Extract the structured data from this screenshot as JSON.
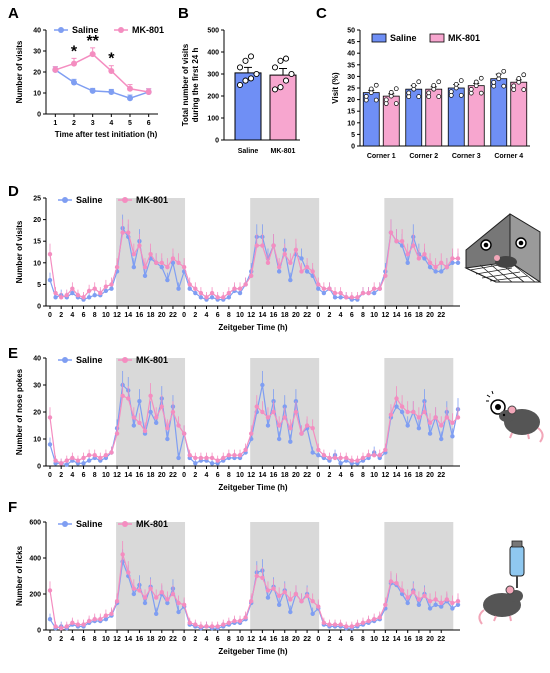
{
  "colors": {
    "saline": "#7f9ef2",
    "mk801": "#f48dc0",
    "shade": "#d9d9d9",
    "cornerBlue": "#6f8ff5",
    "cornerPink": "#f7a6cf"
  },
  "legend": {
    "saline": "Saline",
    "mk801": "MK-801"
  },
  "panels": {
    "A": "A",
    "B": "B",
    "C": "C",
    "D": "D",
    "E": "E",
    "F": "F"
  },
  "chart_data": [
    {
      "id": "A",
      "type": "line",
      "xlabel": "Time after test initiation (h)",
      "ylabel": "Number of visits",
      "x": [
        1,
        2,
        3,
        4,
        5,
        6
      ],
      "xlim": [
        0.5,
        6.5
      ],
      "ylim": [
        0,
        40
      ],
      "yticks": [
        0,
        10,
        20,
        30,
        40
      ],
      "series": [
        {
          "name": "Saline",
          "values": [
            21,
            15,
            11,
            10.5,
            7.5,
            10.5
          ],
          "err": [
            1.5,
            1.5,
            1.2,
            1.2,
            1.5,
            1.5
          ]
        },
        {
          "name": "MK-801",
          "values": [
            21,
            24,
            28.5,
            20.5,
            12,
            10.5
          ],
          "err": [
            1.5,
            2.5,
            3,
            2.5,
            2,
            1.5
          ]
        }
      ],
      "annotations": [
        {
          "x": 2,
          "text": "*"
        },
        {
          "x": 3,
          "text": "**"
        },
        {
          "x": 4,
          "text": "*"
        }
      ]
    },
    {
      "id": "B",
      "type": "bar",
      "ylabel": "Total number of visits during the first 24 h",
      "categories": [
        "Saline",
        "MK-801"
      ],
      "values": [
        305,
        295
      ],
      "err": [
        25,
        30
      ],
      "points": [
        [
          250,
          270,
          280,
          300,
          330,
          360,
          380
        ],
        [
          230,
          240,
          270,
          300,
          330,
          360,
          370
        ]
      ],
      "ylim": [
        0,
        500
      ],
      "yticks": [
        0,
        100,
        200,
        300,
        400,
        500
      ]
    },
    {
      "id": "C",
      "type": "bar",
      "ylabel": "Visit (%)",
      "categories": [
        "Corner 1",
        "Corner 2",
        "Corner 3",
        "Corner 4"
      ],
      "series": [
        {
          "name": "Saline",
          "values": [
            23,
            24.5,
            25,
            29
          ],
          "err": [
            1,
            1.5,
            1.5,
            2
          ]
        },
        {
          "name": "MK-801",
          "values": [
            21.5,
            24.5,
            26,
            27.5
          ],
          "err": [
            1,
            1,
            1,
            1
          ]
        }
      ],
      "ylim": [
        0,
        50
      ],
      "yticks": [
        0,
        5,
        10,
        15,
        20,
        25,
        30,
        35,
        40,
        45,
        50
      ]
    },
    {
      "id": "D",
      "type": "line",
      "xlabel": "Zeitgeber Time (h)",
      "ylabel": "Number of visits",
      "ylim": [
        0,
        25
      ],
      "yticks": [
        0,
        5,
        10,
        15,
        20,
        25
      ],
      "xticks": [
        "0",
        "2",
        "4",
        "6",
        "8",
        "10",
        "12",
        "14",
        "16",
        "18",
        "20",
        "22"
      ],
      "series": [
        {
          "name": "Saline",
          "values": [
            6,
            2,
            2.5,
            2,
            3,
            2,
            1.5,
            2,
            2.5,
            2.5,
            3.5,
            4,
            8,
            18,
            16,
            9,
            15,
            7,
            11,
            10,
            9,
            6,
            10,
            4,
            8,
            4,
            3,
            2,
            1.5,
            2,
            1.5,
            1.5,
            2,
            3.5,
            3,
            5,
            8,
            16,
            16,
            11,
            14,
            8,
            13,
            6,
            12,
            11,
            8,
            7,
            4,
            3,
            4,
            2,
            2,
            2,
            1.5,
            1.5,
            3,
            3,
            3,
            4,
            8,
            17,
            15,
            14,
            10,
            16,
            12,
            11,
            9,
            8,
            8,
            9,
            10,
            10
          ]
        },
        {
          "name": "MK-801",
          "values": [
            12,
            3,
            2,
            2.5,
            4,
            2.5,
            2,
            3.5,
            4,
            3,
            4.5,
            5,
            9,
            17,
            17,
            12,
            14,
            9,
            12,
            10,
            10,
            9,
            11,
            10,
            9,
            5,
            4,
            3,
            2,
            3,
            2,
            2,
            3,
            4,
            4,
            5,
            7,
            14,
            14,
            10,
            14,
            9,
            12,
            10,
            13,
            8,
            9,
            8,
            5,
            4,
            4,
            3,
            3,
            2,
            2,
            2,
            3,
            3,
            4,
            4,
            7,
            17,
            15,
            15,
            12,
            14,
            11,
            12,
            10,
            9,
            10,
            9,
            11,
            11
          ]
        }
      ]
    },
    {
      "id": "E",
      "type": "line",
      "xlabel": "Zeitgeber Time (h)",
      "ylabel": "Number of nose pokes",
      "ylim": [
        0,
        40
      ],
      "yticks": [
        0,
        10,
        20,
        30,
        40
      ],
      "xticks": [
        "0",
        "2",
        "4",
        "6",
        "8",
        "10",
        "12",
        "14",
        "16",
        "18",
        "20",
        "22"
      ],
      "series": [
        {
          "name": "Saline",
          "values": [
            8,
            1,
            1,
            0.5,
            2,
            1,
            1,
            2,
            3,
            2,
            3,
            5,
            14,
            30,
            28,
            15,
            24,
            12,
            20,
            16,
            25,
            10,
            22,
            3,
            12,
            3,
            1,
            2,
            2,
            1,
            1,
            2,
            3,
            3,
            3,
            5,
            10,
            20,
            30,
            15,
            24,
            10,
            22,
            9,
            24,
            12,
            14,
            5,
            4,
            3,
            2,
            4,
            1,
            2,
            1,
            1,
            2,
            3,
            5,
            3,
            5,
            18,
            22,
            20,
            15,
            20,
            14,
            24,
            12,
            18,
            10,
            20,
            11,
            21
          ]
        },
        {
          "name": "MK-801",
          "values": [
            18,
            2,
            1,
            2,
            3,
            2,
            3,
            4,
            4,
            3,
            4,
            5,
            12,
            26,
            25,
            18,
            16,
            13,
            26,
            18,
            22,
            14,
            20,
            15,
            12,
            4,
            3,
            3,
            3,
            3,
            2,
            3,
            4,
            4,
            4,
            6,
            12,
            22,
            20,
            18,
            20,
            15,
            18,
            14,
            20,
            12,
            15,
            14,
            6,
            4,
            3,
            3,
            3,
            3,
            2,
            2,
            3,
            4,
            4,
            4,
            6,
            19,
            25,
            22,
            20,
            20,
            18,
            20,
            16,
            18,
            15,
            18,
            16,
            18
          ]
        }
      ]
    },
    {
      "id": "F",
      "type": "line",
      "xlabel": "Zeitgeber Time (h)",
      "ylabel": "Number of licks",
      "ylim": [
        0,
        600
      ],
      "yticks": [
        0,
        200,
        400,
        600
      ],
      "xticks": [
        "0",
        "2",
        "4",
        "6",
        "8",
        "10",
        "12",
        "14",
        "16",
        "18",
        "20",
        "22"
      ],
      "series": [
        {
          "name": "Saline",
          "values": [
            60,
            10,
            20,
            10,
            30,
            20,
            20,
            40,
            50,
            50,
            60,
            80,
            150,
            380,
            300,
            200,
            250,
            150,
            240,
            90,
            200,
            150,
            230,
            100,
            130,
            30,
            20,
            10,
            20,
            10,
            10,
            20,
            30,
            40,
            40,
            60,
            150,
            320,
            330,
            180,
            240,
            140,
            220,
            100,
            200,
            160,
            200,
            90,
            120,
            30,
            20,
            20,
            20,
            10,
            10,
            20,
            30,
            40,
            50,
            60,
            120,
            260,
            250,
            200,
            150,
            220,
            140,
            200,
            120,
            140,
            130,
            160,
            120,
            140
          ]
        },
        {
          "name": "MK-801",
          "values": [
            220,
            20,
            10,
            20,
            40,
            30,
            30,
            50,
            60,
            60,
            80,
            90,
            160,
            420,
            320,
            230,
            220,
            180,
            230,
            180,
            210,
            170,
            200,
            150,
            140,
            40,
            30,
            20,
            20,
            20,
            20,
            30,
            40,
            50,
            50,
            70,
            160,
            300,
            290,
            220,
            230,
            190,
            210,
            170,
            200,
            160,
            190,
            160,
            130,
            40,
            30,
            30,
            30,
            20,
            20,
            30,
            40,
            50,
            60,
            70,
            140,
            270,
            260,
            220,
            180,
            210,
            170,
            190,
            160,
            170,
            150,
            170,
            150,
            160
          ]
        }
      ]
    }
  ]
}
